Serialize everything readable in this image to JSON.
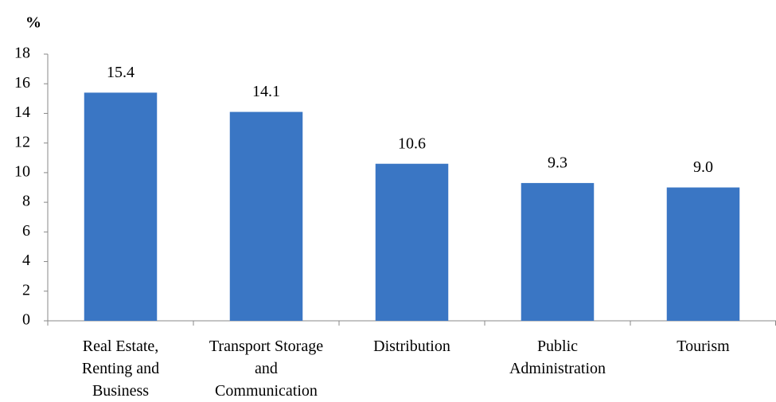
{
  "chart_data": {
    "type": "bar",
    "ylabel": "%",
    "categories": [
      "Real Estate, Renting and Business",
      "Transport Storage and Communication",
      "Distribution",
      "Public Administration",
      "Tourism"
    ],
    "values": [
      15.4,
      14.1,
      10.6,
      9.3,
      9.0
    ],
    "value_labels": [
      "15.4",
      "14.1",
      "10.6",
      "9.3",
      "9.0"
    ],
    "color": "#3a76c4",
    "ylim": [
      0,
      18
    ],
    "yticks": [
      0,
      2,
      4,
      6,
      8,
      10,
      12,
      14,
      16,
      18
    ],
    "grid": false
  }
}
